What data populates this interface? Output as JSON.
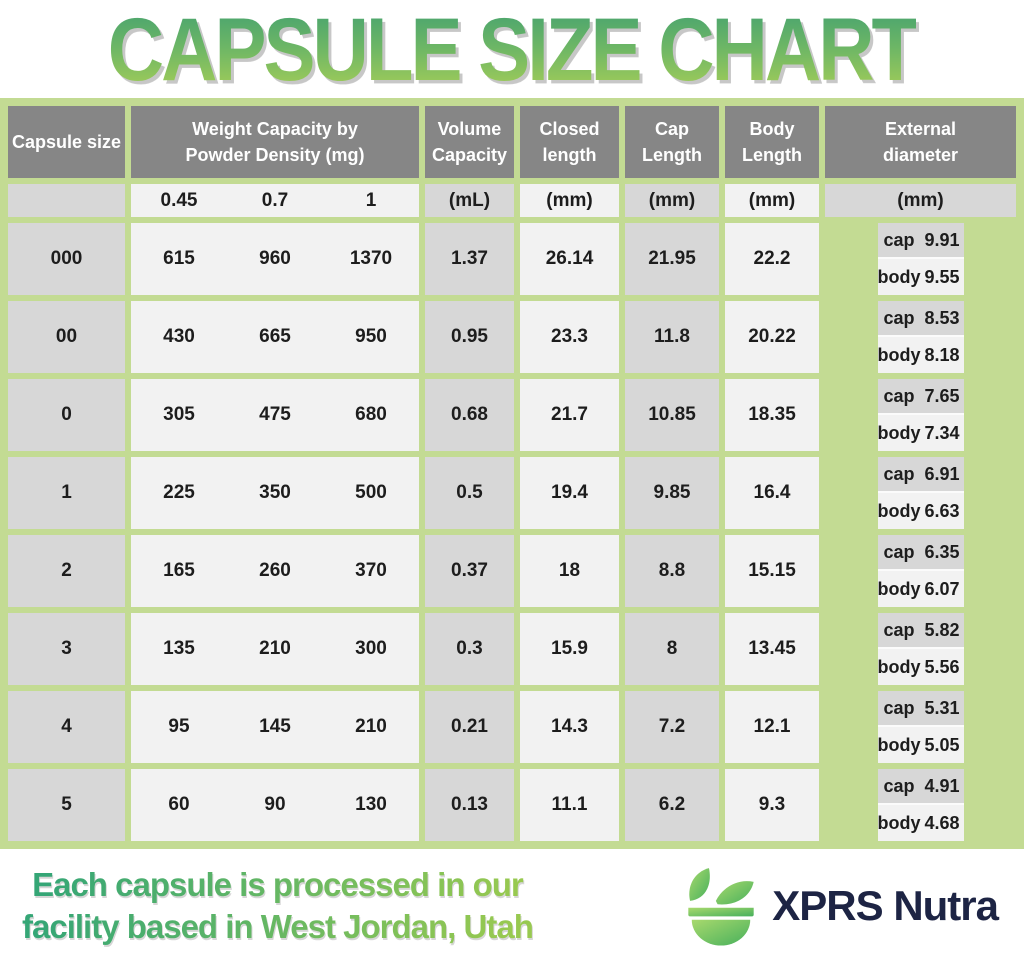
{
  "header": {
    "title": "CAPSULE SIZE CHART"
  },
  "table": {
    "col_headers": {
      "capsule_size": "Capsule size",
      "weight": "Weight Capacity by\nPowder Density (mg)",
      "volume": "Volume\nCapacity",
      "closed": "Closed\nlength",
      "cap": "Cap\nLength",
      "body": "Body\nLength",
      "external": "External\ndiameter"
    },
    "units": {
      "weight_densities": [
        "0.45",
        "0.7",
        "1"
      ],
      "volume": "(mL)",
      "closed": "(mm)",
      "cap": "(mm)",
      "body": "(mm)",
      "external": "(mm)"
    },
    "ext_row_labels": {
      "cap": "cap",
      "body": "body"
    }
  },
  "chart_data": {
    "type": "table",
    "title": "CAPSULE SIZE CHART",
    "columns": [
      "Capsule size",
      "Weight Capacity at Powder Density 0.45 (mg)",
      "Weight Capacity at Powder Density 0.7 (mg)",
      "Weight Capacity at Powder Density 1 (mg)",
      "Volume Capacity (mL)",
      "Closed length (mm)",
      "Cap Length (mm)",
      "Body Length (mm)",
      "External diameter cap (mm)",
      "External diameter body (mm)"
    ],
    "rows": [
      [
        "000",
        "615",
        "960",
        "1370",
        "1.37",
        "26.14",
        "21.95",
        "22.2",
        "9.91",
        "9.55"
      ],
      [
        "00",
        "430",
        "665",
        "950",
        "0.95",
        "23.3",
        "11.8",
        "20.22",
        "8.53",
        "8.18"
      ],
      [
        "0",
        "305",
        "475",
        "680",
        "0.68",
        "21.7",
        "10.85",
        "18.35",
        "7.65",
        "7.34"
      ],
      [
        "1",
        "225",
        "350",
        "500",
        "0.5",
        "19.4",
        "9.85",
        "16.4",
        "6.91",
        "6.63"
      ],
      [
        "2",
        "165",
        "260",
        "370",
        "0.37",
        "18",
        "8.8",
        "15.15",
        "6.35",
        "6.07"
      ],
      [
        "3",
        "135",
        "210",
        "300",
        "0.3",
        "15.9",
        "8",
        "13.45",
        "5.82",
        "5.56"
      ],
      [
        "4",
        "95",
        "145",
        "210",
        "0.21",
        "14.3",
        "7.2",
        "12.1",
        "5.31",
        "5.05"
      ],
      [
        "5",
        "60",
        "90",
        "130",
        "0.13",
        "11.1",
        "6.2",
        "9.3",
        "4.91",
        "4.68"
      ]
    ]
  },
  "footer": {
    "tagline": "Each capsule is processed in our\nfacility based in West Jordan, Utah",
    "brand": "XPRS Nutra"
  },
  "colors": {
    "border_green": "#c3db93",
    "header_gray": "#868686",
    "cell_gray": "#d7d7d7",
    "cell_white": "#f2f2f2",
    "title_gradient_start": "#43a170",
    "title_gradient_end": "#a6ce57",
    "brand_navy": "#1d2444"
  }
}
